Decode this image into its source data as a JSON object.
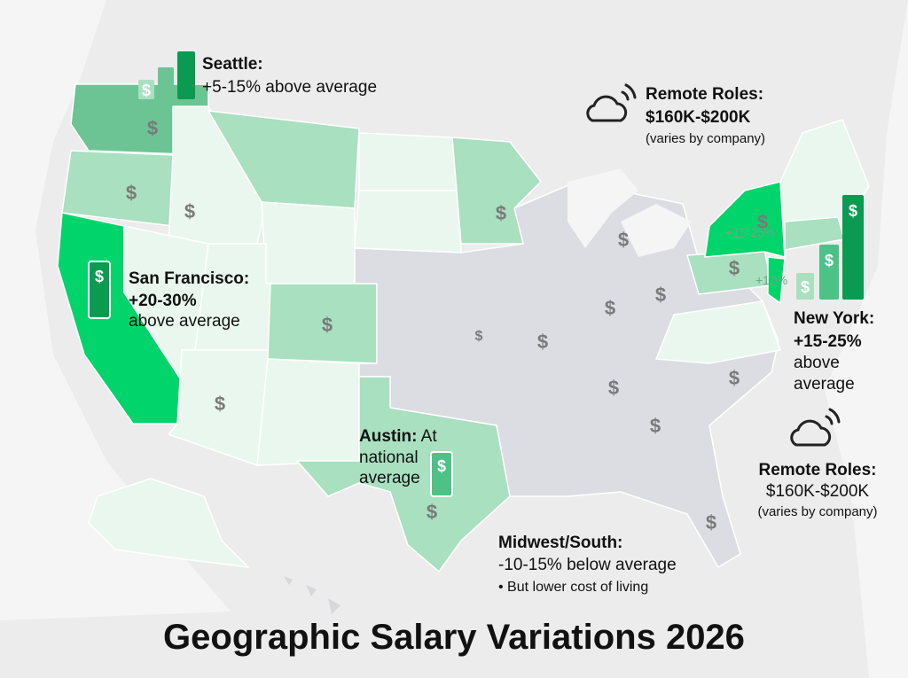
{
  "title": "Geographic Salary Variations 2026",
  "symbol": "$",
  "callouts": {
    "seattle": {
      "label": "Seattle:",
      "text": "+5-15% above average"
    },
    "remote_top": {
      "label": "Remote Roles:",
      "range": "$160K-$200K",
      "note": "(varies by company)"
    },
    "san_francisco": {
      "label": "San Francisco:",
      "lines": [
        "+20-30%",
        "above average"
      ]
    },
    "new_york": {
      "label": "New York:",
      "lines": [
        "+15-25%",
        "above",
        "average"
      ]
    },
    "austin": {
      "label": "Austin:",
      "lines": [
        "At",
        "national",
        "average"
      ]
    },
    "remote_bottom": {
      "label": "Remote Roles:",
      "range": "$160K-$200K",
      "note": "(varies by company)"
    },
    "midwest_south": {
      "label": "Midwest/South:",
      "text": "-10-15% below average",
      "bullet": "• But lower cost of living"
    }
  },
  "map_labels": [
    "+15-25%",
    "+12%"
  ]
}
